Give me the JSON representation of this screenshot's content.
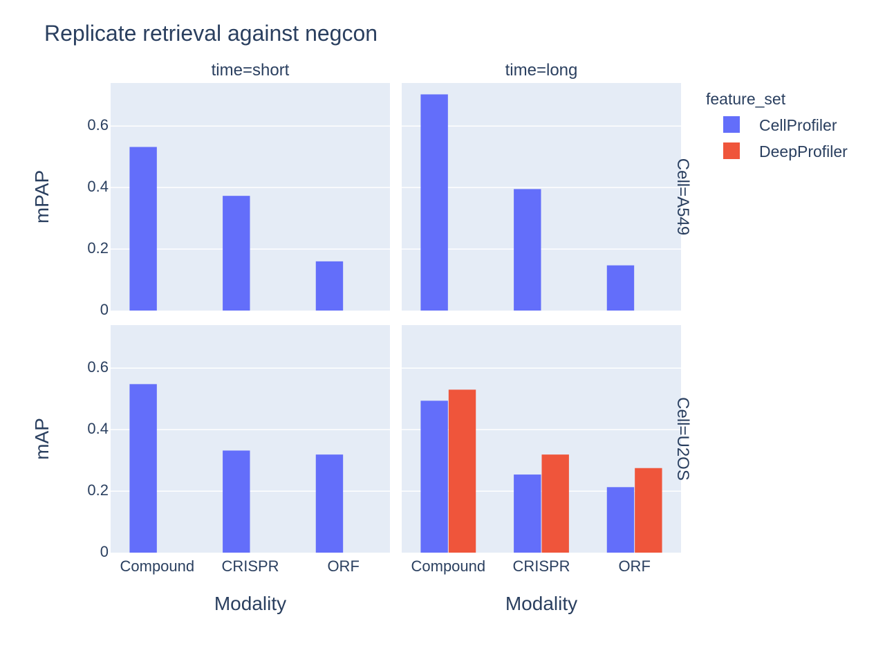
{
  "chart_data": {
    "type": "bar",
    "title": "Replicate retrieval against negcon",
    "categories": [
      "Compound",
      "CRISPR",
      "ORF"
    ],
    "xlabel": "Modality",
    "ylim": [
      0,
      0.74
    ],
    "yticks": [
      0,
      0.2,
      0.4,
      0.6
    ],
    "ytick_labels": [
      "0",
      "0.2",
      "0.4",
      "0.6"
    ],
    "columns": [
      "time=short",
      "time=long"
    ],
    "rows": [
      {
        "facet": "Cell=A549",
        "ylabel": "mPAP"
      },
      {
        "facet": "Cell=U2OS",
        "ylabel": "mAP"
      }
    ],
    "legend": {
      "title": "feature_set",
      "position": "right"
    },
    "series": [
      {
        "name": "CellProfiler",
        "color": "#636efa"
      },
      {
        "name": "DeepProfiler",
        "color": "#ef553b"
      }
    ],
    "panels": [
      {
        "row": 0,
        "col": 0,
        "values": {
          "CellProfiler": [
            0.532,
            0.373,
            0.16
          ],
          "DeepProfiler": [
            null,
            null,
            null
          ]
        }
      },
      {
        "row": 0,
        "col": 1,
        "values": {
          "CellProfiler": [
            0.703,
            0.395,
            0.147
          ],
          "DeepProfiler": [
            null,
            null,
            null
          ]
        }
      },
      {
        "row": 1,
        "col": 0,
        "values": {
          "CellProfiler": [
            0.548,
            0.332,
            0.319
          ],
          "DeepProfiler": [
            null,
            null,
            null
          ]
        }
      },
      {
        "row": 1,
        "col": 1,
        "values": {
          "CellProfiler": [
            0.494,
            0.254,
            0.213
          ],
          "DeepProfiler": [
            0.53,
            0.319,
            0.275
          ]
        }
      }
    ],
    "grid": true
  }
}
